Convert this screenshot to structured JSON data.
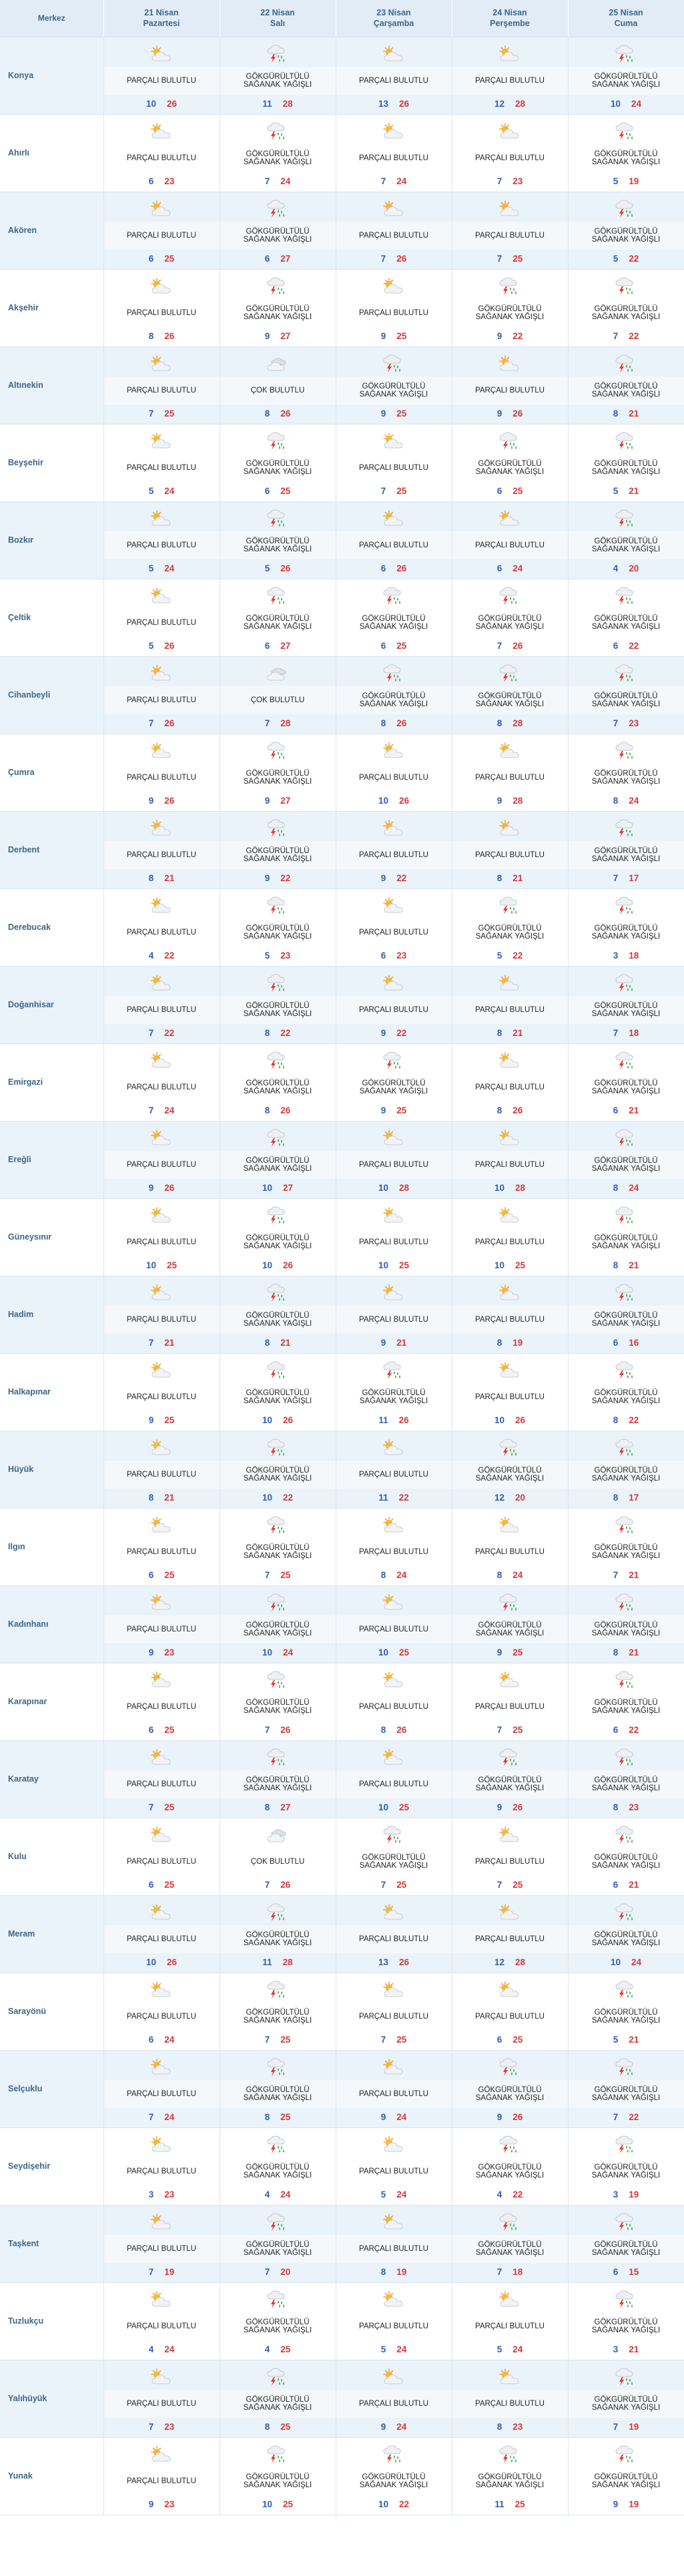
{
  "header": {
    "merkez": "Merkez",
    "days": [
      {
        "date": "21 Nisan",
        "weekday": "Pazartesi"
      },
      {
        "date": "22 Nisan",
        "weekday": "Salı"
      },
      {
        "date": "23 Nisan",
        "weekday": "Çarşamba"
      },
      {
        "date": "24 Nisan",
        "weekday": "Perşembe"
      },
      {
        "date": "25 Nisan",
        "weekday": "Cuma"
      }
    ]
  },
  "conditions": {
    "P": "PARÇALI BULUTLU",
    "G": "GÖKGÜRÜLTÜLÜ SAĞANAK YAĞIŞLI",
    "C": "ÇOK BULUTLU"
  },
  "icons": {
    "P": "partly-cloudy-icon",
    "G": "thunder-shower-icon",
    "C": "mostly-cloudy-icon"
  },
  "colors": {
    "header_bg": "#e1ecf7",
    "row_alt_bg": "#eaf2fa",
    "location_text": "#3e6786",
    "min_temp": "#2f5fb0",
    "max_temp": "#d33a3a"
  },
  "rows": [
    {
      "name": "Konya",
      "days": [
        [
          "P",
          10,
          26
        ],
        [
          "G",
          11,
          28
        ],
        [
          "P",
          13,
          26
        ],
        [
          "P",
          12,
          28
        ],
        [
          "G",
          10,
          24
        ]
      ]
    },
    {
      "name": "Ahırlı",
      "days": [
        [
          "P",
          6,
          23
        ],
        [
          "G",
          7,
          24
        ],
        [
          "P",
          7,
          24
        ],
        [
          "P",
          7,
          23
        ],
        [
          "G",
          5,
          19
        ]
      ]
    },
    {
      "name": "Akören",
      "days": [
        [
          "P",
          6,
          25
        ],
        [
          "G",
          6,
          27
        ],
        [
          "P",
          7,
          26
        ],
        [
          "P",
          7,
          25
        ],
        [
          "G",
          5,
          22
        ]
      ]
    },
    {
      "name": "Akşehir",
      "days": [
        [
          "P",
          8,
          26
        ],
        [
          "G",
          9,
          27
        ],
        [
          "P",
          9,
          25
        ],
        [
          "G",
          9,
          22
        ],
        [
          "G",
          7,
          22
        ]
      ]
    },
    {
      "name": "Altınekin",
      "days": [
        [
          "P",
          7,
          25
        ],
        [
          "C",
          8,
          26
        ],
        [
          "G",
          9,
          25
        ],
        [
          "P",
          9,
          26
        ],
        [
          "G",
          8,
          21
        ]
      ]
    },
    {
      "name": "Beyşehir",
      "days": [
        [
          "P",
          5,
          24
        ],
        [
          "G",
          6,
          25
        ],
        [
          "P",
          7,
          25
        ],
        [
          "G",
          6,
          25
        ],
        [
          "G",
          5,
          21
        ]
      ]
    },
    {
      "name": "Bozkır",
      "days": [
        [
          "P",
          5,
          24
        ],
        [
          "G",
          5,
          26
        ],
        [
          "P",
          6,
          26
        ],
        [
          "P",
          6,
          24
        ],
        [
          "G",
          4,
          20
        ]
      ]
    },
    {
      "name": "Çeltik",
      "days": [
        [
          "P",
          5,
          26
        ],
        [
          "G",
          6,
          27
        ],
        [
          "G",
          6,
          25
        ],
        [
          "G",
          7,
          26
        ],
        [
          "G",
          6,
          22
        ]
      ]
    },
    {
      "name": "Cihanbeyli",
      "days": [
        [
          "P",
          7,
          26
        ],
        [
          "C",
          7,
          28
        ],
        [
          "G",
          8,
          26
        ],
        [
          "G",
          8,
          28
        ],
        [
          "G",
          7,
          23
        ]
      ]
    },
    {
      "name": "Çumra",
      "days": [
        [
          "P",
          9,
          26
        ],
        [
          "G",
          9,
          27
        ],
        [
          "P",
          10,
          26
        ],
        [
          "P",
          9,
          28
        ],
        [
          "G",
          8,
          24
        ]
      ]
    },
    {
      "name": "Derbent",
      "days": [
        [
          "P",
          8,
          21
        ],
        [
          "G",
          9,
          22
        ],
        [
          "P",
          9,
          22
        ],
        [
          "P",
          8,
          21
        ],
        [
          "G",
          7,
          17
        ]
      ]
    },
    {
      "name": "Derebucak",
      "days": [
        [
          "P",
          4,
          22
        ],
        [
          "G",
          5,
          23
        ],
        [
          "P",
          6,
          23
        ],
        [
          "G",
          5,
          22
        ],
        [
          "G",
          3,
          18
        ]
      ]
    },
    {
      "name": "Doğanhisar",
      "days": [
        [
          "P",
          7,
          22
        ],
        [
          "G",
          8,
          22
        ],
        [
          "P",
          9,
          22
        ],
        [
          "P",
          8,
          21
        ],
        [
          "G",
          7,
          18
        ]
      ]
    },
    {
      "name": "Emirgazi",
      "days": [
        [
          "P",
          7,
          24
        ],
        [
          "G",
          8,
          26
        ],
        [
          "G",
          9,
          25
        ],
        [
          "P",
          8,
          26
        ],
        [
          "G",
          6,
          21
        ]
      ]
    },
    {
      "name": "Ereğli",
      "days": [
        [
          "P",
          9,
          26
        ],
        [
          "G",
          10,
          27
        ],
        [
          "P",
          10,
          28
        ],
        [
          "P",
          10,
          28
        ],
        [
          "G",
          8,
          24
        ]
      ]
    },
    {
      "name": "Güneysınır",
      "days": [
        [
          "P",
          10,
          25
        ],
        [
          "G",
          10,
          26
        ],
        [
          "P",
          10,
          25
        ],
        [
          "P",
          10,
          25
        ],
        [
          "G",
          8,
          21
        ]
      ]
    },
    {
      "name": "Hadim",
      "days": [
        [
          "P",
          7,
          21
        ],
        [
          "G",
          8,
          21
        ],
        [
          "P",
          9,
          21
        ],
        [
          "P",
          8,
          19
        ],
        [
          "G",
          6,
          16
        ]
      ]
    },
    {
      "name": "Halkapınar",
      "days": [
        [
          "P",
          9,
          25
        ],
        [
          "G",
          10,
          26
        ],
        [
          "G",
          11,
          26
        ],
        [
          "P",
          10,
          26
        ],
        [
          "G",
          8,
          22
        ]
      ]
    },
    {
      "name": "Hüyük",
      "days": [
        [
          "P",
          8,
          21
        ],
        [
          "G",
          10,
          22
        ],
        [
          "P",
          11,
          22
        ],
        [
          "G",
          12,
          20
        ],
        [
          "G",
          8,
          17
        ]
      ]
    },
    {
      "name": "Ilgın",
      "days": [
        [
          "P",
          6,
          25
        ],
        [
          "G",
          7,
          25
        ],
        [
          "P",
          8,
          24
        ],
        [
          "P",
          8,
          24
        ],
        [
          "G",
          7,
          21
        ]
      ]
    },
    {
      "name": "Kadınhanı",
      "days": [
        [
          "P",
          9,
          23
        ],
        [
          "G",
          10,
          24
        ],
        [
          "P",
          10,
          25
        ],
        [
          "G",
          9,
          25
        ],
        [
          "G",
          8,
          21
        ]
      ]
    },
    {
      "name": "Karapınar",
      "days": [
        [
          "P",
          6,
          25
        ],
        [
          "G",
          7,
          26
        ],
        [
          "P",
          8,
          26
        ],
        [
          "P",
          7,
          25
        ],
        [
          "G",
          6,
          22
        ]
      ]
    },
    {
      "name": "Karatay",
      "days": [
        [
          "P",
          7,
          25
        ],
        [
          "G",
          8,
          27
        ],
        [
          "P",
          10,
          25
        ],
        [
          "G",
          9,
          26
        ],
        [
          "G",
          8,
          23
        ]
      ]
    },
    {
      "name": "Kulu",
      "days": [
        [
          "P",
          6,
          25
        ],
        [
          "C",
          7,
          26
        ],
        [
          "G",
          7,
          25
        ],
        [
          "P",
          7,
          25
        ],
        [
          "G",
          6,
          21
        ]
      ]
    },
    {
      "name": "Meram",
      "days": [
        [
          "P",
          10,
          26
        ],
        [
          "G",
          11,
          28
        ],
        [
          "P",
          13,
          26
        ],
        [
          "P",
          12,
          28
        ],
        [
          "G",
          10,
          24
        ]
      ]
    },
    {
      "name": "Sarayönü",
      "days": [
        [
          "P",
          6,
          24
        ],
        [
          "G",
          7,
          25
        ],
        [
          "P",
          7,
          25
        ],
        [
          "P",
          6,
          25
        ],
        [
          "G",
          5,
          21
        ]
      ]
    },
    {
      "name": "Selçuklu",
      "days": [
        [
          "P",
          7,
          24
        ],
        [
          "G",
          8,
          25
        ],
        [
          "P",
          9,
          24
        ],
        [
          "G",
          9,
          26
        ],
        [
          "G",
          7,
          22
        ]
      ]
    },
    {
      "name": "Seydişehir",
      "days": [
        [
          "P",
          3,
          23
        ],
        [
          "G",
          4,
          24
        ],
        [
          "P",
          5,
          24
        ],
        [
          "G",
          4,
          22
        ],
        [
          "G",
          3,
          19
        ]
      ]
    },
    {
      "name": "Taşkent",
      "days": [
        [
          "P",
          7,
          19
        ],
        [
          "G",
          7,
          20
        ],
        [
          "P",
          8,
          19
        ],
        [
          "G",
          7,
          18
        ],
        [
          "G",
          6,
          15
        ]
      ]
    },
    {
      "name": "Tuzlukçu",
      "days": [
        [
          "P",
          4,
          24
        ],
        [
          "G",
          4,
          25
        ],
        [
          "P",
          5,
          24
        ],
        [
          "P",
          5,
          24
        ],
        [
          "G",
          3,
          21
        ]
      ]
    },
    {
      "name": "Yalıhüyük",
      "days": [
        [
          "P",
          7,
          23
        ],
        [
          "G",
          8,
          25
        ],
        [
          "P",
          9,
          24
        ],
        [
          "P",
          8,
          23
        ],
        [
          "G",
          7,
          19
        ]
      ]
    },
    {
      "name": "Yunak",
      "days": [
        [
          "P",
          9,
          23
        ],
        [
          "G",
          10,
          25
        ],
        [
          "G",
          10,
          22
        ],
        [
          "G",
          11,
          25
        ],
        [
          "G",
          9,
          19
        ]
      ]
    }
  ]
}
